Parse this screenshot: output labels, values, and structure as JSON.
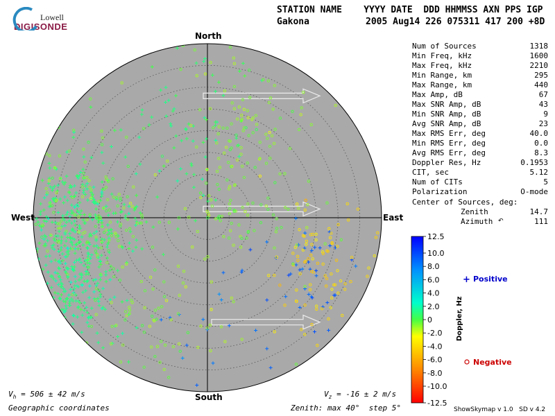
{
  "logo": {
    "line1": "Lowell",
    "line2": "DIGISONDE"
  },
  "header": {
    "labels_line": "STATION NAME    YYYY DATE  DDD HHMMSS AXN PPS IGP",
    "station": "Gakona",
    "values_line": "2005 Aug14 226 075311 417 200 +8D"
  },
  "directions": {
    "north": "North",
    "south": "South",
    "east": "East",
    "west": "West"
  },
  "stats": [
    {
      "label": "Num of Sources",
      "value": "1318"
    },
    {
      "label": "Min Freq, kHz",
      "value": "1600"
    },
    {
      "label": "Max Freq, kHz",
      "value": "2210"
    },
    {
      "label": "Min Range, km",
      "value": "295"
    },
    {
      "label": "Max Range, km",
      "value": "440"
    },
    {
      "label": "Max Amp, dB",
      "value": "67"
    },
    {
      "label": "Max SNR Amp, dB",
      "value": "43"
    },
    {
      "label": "Min SNR Amp, dB",
      "value": "9"
    },
    {
      "label": "Avg SNR Amp, dB",
      "value": "23"
    },
    {
      "label": "Max RMS Err, deg",
      "value": "40.0"
    },
    {
      "label": "Min RMS Err, deg",
      "value": "0.0"
    },
    {
      "label": "Avg RMS Err, deg",
      "value": "8.3"
    },
    {
      "label": "Doppler Res, Hz",
      "value": "0.1953"
    },
    {
      "label": "CIT, sec",
      "value": "5.12"
    },
    {
      "label": "Num of CITs",
      "value": "5"
    },
    {
      "label": "Polarization",
      "value": "O-mode"
    }
  ],
  "center": {
    "title": "Center of Sources, deg:",
    "zenith_label": "Zenith",
    "zenith_value": "14.7",
    "azimuth_label": "Azimuth",
    "azimuth_value": "111"
  },
  "footer": {
    "vh_sym": "V",
    "vh_sub": "h",
    "vh_text": " = 506 ± 42 m/s",
    "vz_sym": "V",
    "vz_sub": "z",
    "vz_text": " = -16 ± 2 m/s",
    "coords": "Geographic coordinates",
    "zenith_info": "Zenith: max 40°  step 5°",
    "version": "ShowSkymap v 1.0   SD v 4.2"
  },
  "colorbar": {
    "ticks": [
      "12.5",
      "10.0",
      "8.0",
      "6.0",
      "4.0",
      "2.0",
      "0",
      "-2.0",
      "-4.0",
      "-6.0",
      "-8.0",
      "-10.0",
      "-12.5"
    ],
    "label": "Doppler, Hz",
    "positive": "Positive",
    "negative": "Negative",
    "positive_color": "#0000cc",
    "negative_color": "#cc0000"
  },
  "chart_data": {
    "type": "scatter",
    "coordinate_system": "polar (zenith angle, azimuth)",
    "zenith_max_deg": 40,
    "zenith_step_deg": 5,
    "doppler_range_hz": [
      -12.5,
      12.5
    ],
    "vectors": [
      {
        "azimuth_deg": 90,
        "zenith_deg": 28
      },
      {
        "azimuth_deg": 90,
        "zenith_deg": 2
      },
      {
        "azimuth_deg": 90,
        "zenith_deg": -24
      }
    ],
    "series": [
      {
        "name": "Positive",
        "marker": "plus",
        "clusters": [
          {
            "azimuth_deg": 265,
            "zenith_deg": 31,
            "spread_deg": 7,
            "count": 380,
            "doppler_hz": 1.2
          },
          {
            "azimuth_deg": 240,
            "zenith_deg": 36,
            "spread_deg": 5,
            "count": 160,
            "doppler_hz": 1.5
          },
          {
            "azimuth_deg": 345,
            "zenith_deg": 24,
            "spread_deg": 9,
            "count": 70,
            "doppler_hz": 0.9
          },
          {
            "azimuth_deg": 120,
            "zenith_deg": 28,
            "spread_deg": 6,
            "count": 40,
            "doppler_hz": 9.5
          },
          {
            "azimuth_deg": 175,
            "zenith_deg": 30,
            "spread_deg": 8,
            "count": 20,
            "doppler_hz": 9.0
          }
        ]
      },
      {
        "name": "Negative",
        "marker": "circle",
        "clusters": [
          {
            "azimuth_deg": 20,
            "zenith_deg": 22,
            "spread_deg": 8,
            "count": 110,
            "doppler_hz": -1.0
          },
          {
            "azimuth_deg": 270,
            "zenith_deg": 28,
            "spread_deg": 9,
            "count": 150,
            "doppler_hz": -0.8
          },
          {
            "azimuth_deg": 115,
            "zenith_deg": 30,
            "spread_deg": 6,
            "count": 90,
            "doppler_hz": -4.5
          },
          {
            "azimuth_deg": 200,
            "zenith_deg": 25,
            "spread_deg": 9,
            "count": 80,
            "doppler_hz": -1.2
          },
          {
            "azimuth_deg": 90,
            "zenith_deg": 10,
            "spread_deg": 10,
            "count": 60,
            "doppler_hz": -0.6
          }
        ]
      }
    ]
  }
}
